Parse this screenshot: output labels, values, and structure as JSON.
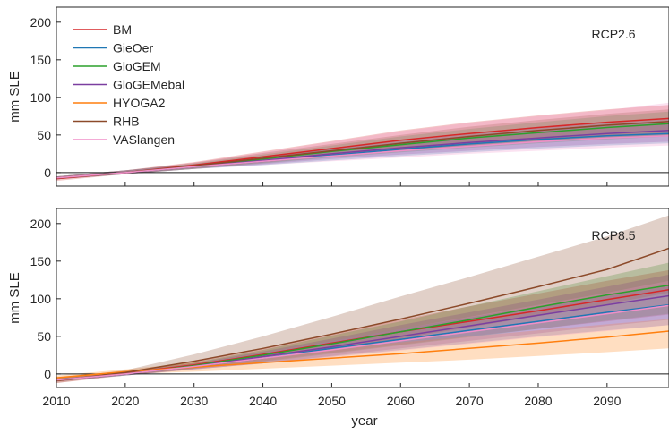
{
  "chart_data": [
    {
      "type": "line",
      "panel_label": "RCP2.6",
      "ylabel": "mm SLE",
      "xlabel": "",
      "xlim": [
        2010,
        2099
      ],
      "ylim": [
        -18,
        220
      ],
      "yticks": [
        0,
        50,
        100,
        150,
        200
      ],
      "xticks": [
        2010,
        2020,
        2030,
        2040,
        2050,
        2060,
        2070,
        2080,
        2090
      ],
      "show_xtick_labels": false,
      "zero_line": true,
      "grid": false,
      "legend_position": "top-left",
      "x": [
        2010,
        2020,
        2030,
        2040,
        2050,
        2060,
        2070,
        2080,
        2090,
        2099
      ],
      "series": [
        {
          "name": "BM",
          "color": "#d62728",
          "values": [
            -8,
            0,
            10,
            21,
            32,
            43,
            52,
            60,
            67,
            72
          ],
          "lower": [
            -11,
            -2,
            6,
            14,
            22,
            30,
            37,
            43,
            49,
            53
          ],
          "upper": [
            -5,
            3,
            14,
            28,
            42,
            56,
            67,
            76,
            84,
            90
          ]
        },
        {
          "name": "GieOer",
          "color": "#1f77b4",
          "values": [
            -7,
            0,
            8,
            15,
            23,
            31,
            38,
            44,
            49,
            52
          ],
          "lower": [
            -9,
            -2,
            5,
            10,
            16,
            22,
            27,
            32,
            36,
            39
          ],
          "upper": [
            -5,
            3,
            11,
            21,
            31,
            40,
            49,
            57,
            63,
            67
          ]
        },
        {
          "name": "GloGEM",
          "color": "#2ca02c",
          "values": [
            -7,
            0,
            8,
            18,
            28,
            37,
            46,
            53,
            60,
            65
          ],
          "lower": [
            -9,
            -2,
            5,
            12,
            20,
            27,
            33,
            39,
            44,
            48
          ],
          "upper": [
            -5,
            3,
            12,
            24,
            36,
            48,
            58,
            67,
            75,
            81
          ]
        },
        {
          "name": "GloGEMebal",
          "color": "#7b3fa0",
          "values": [
            -7,
            0,
            8,
            16,
            25,
            33,
            40,
            46,
            52,
            56
          ],
          "lower": [
            -9,
            -2,
            5,
            11,
            18,
            24,
            29,
            34,
            38,
            41
          ],
          "upper": [
            -5,
            3,
            11,
            22,
            32,
            42,
            51,
            59,
            66,
            71
          ]
        },
        {
          "name": "HYOGA2",
          "color": "#ff7f0e",
          "values": null,
          "lower": null,
          "upper": null
        },
        {
          "name": "RHB",
          "color": "#8c4a2a",
          "values": [
            -7,
            0,
            9,
            19,
            29,
            39,
            48,
            56,
            63,
            68
          ],
          "lower": [
            -9,
            -2,
            5,
            13,
            21,
            28,
            35,
            41,
            46,
            50
          ],
          "upper": [
            -5,
            3,
            13,
            26,
            38,
            50,
            61,
            70,
            78,
            84
          ]
        },
        {
          "name": "VASlangen",
          "color": "#f08fc8",
          "values": [
            -7,
            0,
            8,
            15,
            22,
            29,
            35,
            41,
            46,
            49
          ],
          "lower": [
            -9,
            -2,
            5,
            10,
            15,
            20,
            25,
            29,
            33,
            36
          ],
          "upper": [
            -5,
            3,
            13,
            27,
            41,
            55,
            66,
            75,
            83,
            93
          ]
        }
      ]
    },
    {
      "type": "line",
      "panel_label": "RCP8.5",
      "ylabel": "mm SLE",
      "xlabel": "year",
      "xlim": [
        2010,
        2099
      ],
      "ylim": [
        -18,
        220
      ],
      "yticks": [
        0,
        50,
        100,
        150,
        200
      ],
      "xticks": [
        2010,
        2020,
        2030,
        2040,
        2050,
        2060,
        2070,
        2080,
        2090
      ],
      "show_xtick_labels": true,
      "zero_line": true,
      "grid": false,
      "legend_position": "none",
      "x": [
        2010,
        2020,
        2030,
        2040,
        2050,
        2060,
        2070,
        2080,
        2090,
        2099
      ],
      "series": [
        {
          "name": "BM",
          "color": "#d62728",
          "values": [
            -9,
            1,
            12,
            26,
            41,
            56,
            70,
            84,
            99,
            112
          ],
          "lower": [
            -12,
            -2,
            7,
            17,
            28,
            39,
            50,
            60,
            70,
            79
          ],
          "upper": [
            -6,
            3,
            16,
            34,
            53,
            72,
            90,
            107,
            124,
            138
          ]
        },
        {
          "name": "GieOer",
          "color": "#1f77b4",
          "values": [
            -8,
            0,
            10,
            21,
            34,
            46,
            58,
            70,
            82,
            92
          ],
          "lower": [
            -10,
            -2,
            6,
            14,
            23,
            32,
            41,
            50,
            58,
            65
          ],
          "upper": [
            -6,
            3,
            14,
            28,
            44,
            60,
            75,
            90,
            104,
            117
          ]
        },
        {
          "name": "GloGEM",
          "color": "#2ca02c",
          "values": [
            -8,
            0,
            11,
            25,
            40,
            56,
            72,
            89,
            105,
            118
          ],
          "lower": [
            -10,
            -2,
            7,
            16,
            27,
            38,
            49,
            60,
            71,
            80
          ],
          "upper": [
            -6,
            3,
            15,
            32,
            51,
            70,
            90,
            110,
            130,
            148
          ]
        },
        {
          "name": "GloGEMebal",
          "color": "#7b3fa0",
          "values": [
            -8,
            0,
            10,
            23,
            36,
            50,
            64,
            78,
            92,
            104
          ],
          "lower": [
            -10,
            -2,
            6,
            14,
            24,
            34,
            44,
            54,
            64,
            72
          ],
          "upper": [
            -6,
            3,
            14,
            30,
            47,
            65,
            82,
            99,
            116,
            132
          ]
        },
        {
          "name": "HYOGA2",
          "color": "#ff7f0e",
          "values": [
            -5,
            3,
            9,
            15,
            21,
            27,
            34,
            41,
            49,
            57
          ],
          "lower": [
            -8,
            0,
            3,
            7,
            11,
            15,
            19,
            24,
            29,
            34
          ],
          "upper": [
            -2,
            6,
            15,
            24,
            33,
            42,
            50,
            58,
            66,
            73
          ]
        },
        {
          "name": "RHB",
          "color": "#8c4a2a",
          "values": [
            -9,
            2,
            17,
            34,
            53,
            73,
            94,
            116,
            139,
            167
          ],
          "lower": [
            -12,
            -1,
            8,
            20,
            33,
            47,
            62,
            77,
            93,
            108
          ],
          "upper": [
            -6,
            5,
            26,
            50,
            76,
            103,
            129,
            156,
            183,
            211
          ]
        },
        {
          "name": "VASlangen",
          "color": "#f08fc8",
          "values": [
            -8,
            0,
            10,
            21,
            32,
            44,
            56,
            68,
            80,
            91
          ],
          "lower": [
            -10,
            -2,
            6,
            14,
            22,
            31,
            40,
            49,
            57,
            65
          ],
          "upper": [
            -6,
            3,
            14,
            28,
            44,
            60,
            76,
            92,
            108,
            124
          ]
        }
      ]
    }
  ]
}
